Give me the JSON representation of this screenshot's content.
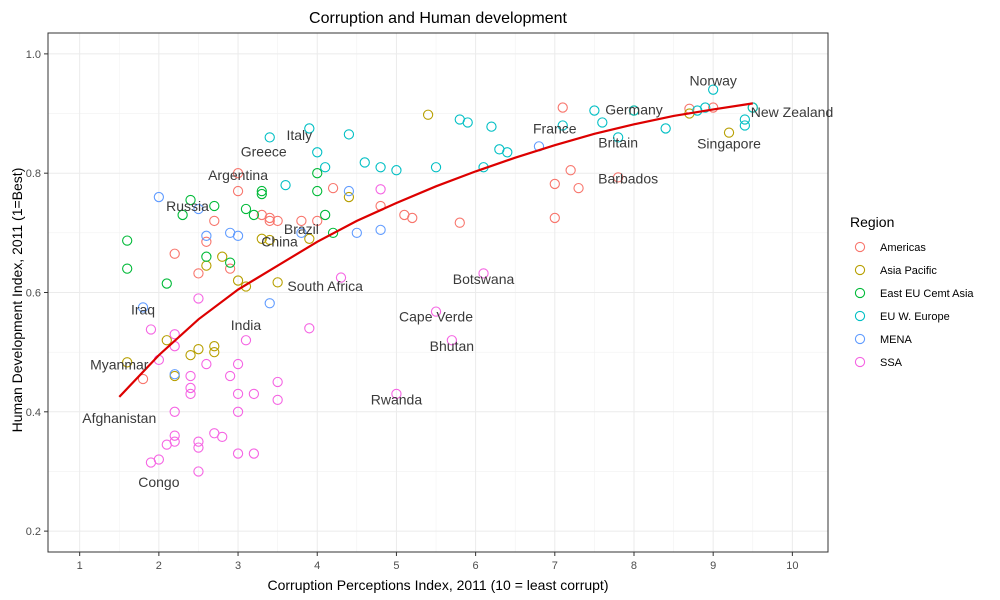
{
  "chart_data": {
    "type": "scatter",
    "title": "Corruption and Human development",
    "xlabel": "Corruption Perceptions Index, 2011 (10 = least corrupt)",
    "ylabel": "Human Development Index, 2011 (1=Best)",
    "xlim": [
      0.6,
      10.45
    ],
    "ylim": [
      0.165,
      1.035
    ],
    "x_ticks": [
      1,
      2,
      3,
      4,
      5,
      6,
      7,
      8,
      9,
      10
    ],
    "y_ticks": [
      0.2,
      0.4,
      0.6,
      0.8,
      1.0
    ],
    "x_tick_labels": [
      "1",
      "2",
      "3",
      "4",
      "5",
      "6",
      "7",
      "8",
      "9",
      "10"
    ],
    "y_tick_labels": [
      "0.2",
      "0.4",
      "0.6",
      "0.8",
      "1.0"
    ],
    "grid": true,
    "legend": {
      "title": "Region",
      "position": "right",
      "entries": [
        {
          "name": "Americas",
          "color": "#F8766D"
        },
        {
          "name": "Asia Pacific",
          "color": "#B79F00"
        },
        {
          "name": "East EU Cemt Asia",
          "color": "#00BA38"
        },
        {
          "name": "EU W. Europe",
          "color": "#00BFC4"
        },
        {
          "name": "MENA",
          "color": "#619CFF"
        },
        {
          "name": "SSA",
          "color": "#F564E3"
        }
      ]
    },
    "trend_line": {
      "color": "#DD0000",
      "points": [
        [
          1.5,
          0.425
        ],
        [
          2,
          0.495
        ],
        [
          2.5,
          0.555
        ],
        [
          3,
          0.605
        ],
        [
          3.5,
          0.645
        ],
        [
          4,
          0.685
        ],
        [
          4.5,
          0.72
        ],
        [
          5,
          0.75
        ],
        [
          5.5,
          0.778
        ],
        [
          6,
          0.803
        ],
        [
          6.5,
          0.826
        ],
        [
          7,
          0.847
        ],
        [
          7.5,
          0.866
        ],
        [
          8,
          0.882
        ],
        [
          8.5,
          0.896
        ],
        [
          9,
          0.907
        ],
        [
          9.5,
          0.917
        ]
      ]
    },
    "series": [
      {
        "name": "Americas",
        "x": [
          1.8,
          2.2,
          2.5,
          2.6,
          2.7,
          2.9,
          3.0,
          3.0,
          3.3,
          3.4,
          3.4,
          3.5,
          3.8,
          4.0,
          4.2,
          4.8,
          5.1,
          5.2,
          5.8,
          7.0,
          7.0,
          7.1,
          7.2,
          7.3,
          7.8,
          8.7,
          9.0
        ],
        "y": [
          0.455,
          0.665,
          0.632,
          0.685,
          0.72,
          0.64,
          0.77,
          0.8,
          0.73,
          0.72,
          0.725,
          0.72,
          0.72,
          0.72,
          0.775,
          0.745,
          0.73,
          0.725,
          0.717,
          0.725,
          0.782,
          0.91,
          0.805,
          0.775,
          0.793,
          0.908,
          0.91
        ]
      },
      {
        "name": "Asia Pacific",
        "x": [
          1.6,
          2.1,
          2.2,
          2.4,
          2.5,
          2.6,
          2.7,
          2.7,
          2.8,
          3.0,
          3.1,
          3.3,
          3.4,
          3.5,
          3.9,
          4.4,
          5.4,
          8.0,
          8.7,
          9.2,
          9.5
        ],
        "y": [
          0.483,
          0.52,
          0.46,
          0.495,
          0.505,
          0.645,
          0.5,
          0.51,
          0.66,
          0.62,
          0.61,
          0.69,
          0.688,
          0.617,
          0.69,
          0.76,
          0.898,
          0.905,
          0.9,
          0.868,
          0.91
        ]
      },
      {
        "name": "East EU Cemt Asia",
        "x": [
          1.6,
          1.6,
          2.1,
          2.3,
          2.4,
          2.6,
          2.7,
          2.9,
          3.1,
          3.2,
          3.3,
          3.3,
          4.0,
          4.0,
          4.1,
          4.2
        ],
        "y": [
          0.64,
          0.687,
          0.615,
          0.73,
          0.755,
          0.66,
          0.745,
          0.65,
          0.74,
          0.73,
          0.765,
          0.77,
          0.77,
          0.8,
          0.73,
          0.7
        ]
      },
      {
        "name": "EU W. Europe",
        "x": [
          3.4,
          3.6,
          3.9,
          4.0,
          4.1,
          4.4,
          4.6,
          4.8,
          5.0,
          5.5,
          5.8,
          5.9,
          6.1,
          6.2,
          6.3,
          6.4,
          7.1,
          7.5,
          7.6,
          7.8,
          8.0,
          8.4,
          8.8,
          8.9,
          9.0,
          9.4,
          9.4,
          9.5
        ],
        "y": [
          0.86,
          0.78,
          0.875,
          0.835,
          0.81,
          0.865,
          0.818,
          0.81,
          0.805,
          0.81,
          0.89,
          0.885,
          0.81,
          0.878,
          0.84,
          0.835,
          0.88,
          0.905,
          0.885,
          0.86,
          0.905,
          0.875,
          0.905,
          0.91,
          0.94,
          0.89,
          0.88,
          0.91
        ]
      },
      {
        "name": "MENA",
        "x": [
          1.8,
          2.0,
          2.2,
          2.5,
          2.6,
          2.9,
          3.0,
          3.4,
          3.8,
          4.4,
          4.5,
          4.8,
          6.8
        ],
        "y": [
          0.575,
          0.76,
          0.463,
          0.74,
          0.695,
          0.7,
          0.695,
          0.582,
          0.7,
          0.77,
          0.7,
          0.705,
          0.845
        ]
      },
      {
        "name": "SSA",
        "x": [
          1.9,
          1.9,
          2.0,
          2.0,
          2.1,
          2.2,
          2.2,
          2.2,
          2.2,
          2.2,
          2.4,
          2.4,
          2.4,
          2.5,
          2.5,
          2.5,
          2.5,
          2.6,
          2.7,
          2.8,
          2.9,
          3.0,
          3.0,
          3.0,
          3.0,
          3.1,
          3.2,
          3.2,
          3.5,
          3.5,
          3.9,
          4.3,
          4.8,
          5.0,
          5.5,
          5.7,
          6.1
        ],
        "y": [
          0.315,
          0.538,
          0.32,
          0.487,
          0.345,
          0.51,
          0.53,
          0.4,
          0.36,
          0.35,
          0.43,
          0.44,
          0.46,
          0.3,
          0.34,
          0.35,
          0.59,
          0.48,
          0.364,
          0.358,
          0.46,
          0.33,
          0.4,
          0.43,
          0.48,
          0.52,
          0.33,
          0.43,
          0.45,
          0.42,
          0.54,
          0.625,
          0.773,
          0.43,
          0.568,
          0.52,
          0.632
        ]
      }
    ],
    "annotations": [
      {
        "text": "Norway",
        "x": 9.0,
        "y": 0.94
      },
      {
        "text": "Germany",
        "x": 8.0,
        "y": 0.905
      },
      {
        "text": "New Zealand",
        "x": 9.5,
        "y": 0.908
      },
      {
        "text": "France",
        "x": 7.0,
        "y": 0.88
      },
      {
        "text": "Britain",
        "x": 7.8,
        "y": 0.86
      },
      {
        "text": "Singapore",
        "x": 9.2,
        "y": 0.865
      },
      {
        "text": "Italy",
        "x": 3.9,
        "y": 0.872
      },
      {
        "text": "Greece",
        "x": 3.4,
        "y": 0.86
      },
      {
        "text": "Barbados",
        "x": 7.8,
        "y": 0.793
      },
      {
        "text": "Argentina",
        "x": 3.0,
        "y": 0.797
      },
      {
        "text": "Russia",
        "x": 2.4,
        "y": 0.755
      },
      {
        "text": "Brazil",
        "x": 3.8,
        "y": 0.718
      },
      {
        "text": "China",
        "x": 3.6,
        "y": 0.687
      },
      {
        "text": "Botswana",
        "x": 6.1,
        "y": 0.633
      },
      {
        "text": "South Africa",
        "x": 4.1,
        "y": 0.619
      },
      {
        "text": "Iraq",
        "x": 1.8,
        "y": 0.573
      },
      {
        "text": "Cape Verde",
        "x": 5.5,
        "y": 0.568
      },
      {
        "text": "India",
        "x": 3.1,
        "y": 0.547
      },
      {
        "text": "Bhutan",
        "x": 5.7,
        "y": 0.522
      },
      {
        "text": "Myanmar",
        "x": 1.5,
        "y": 0.483
      },
      {
        "text": "Rwanda",
        "x": 5.0,
        "y": 0.429
      },
      {
        "text": "Afghanistan",
        "x": 1.5,
        "y": 0.398
      },
      {
        "text": "Congo",
        "x": 2.0,
        "y": 0.286
      }
    ]
  }
}
